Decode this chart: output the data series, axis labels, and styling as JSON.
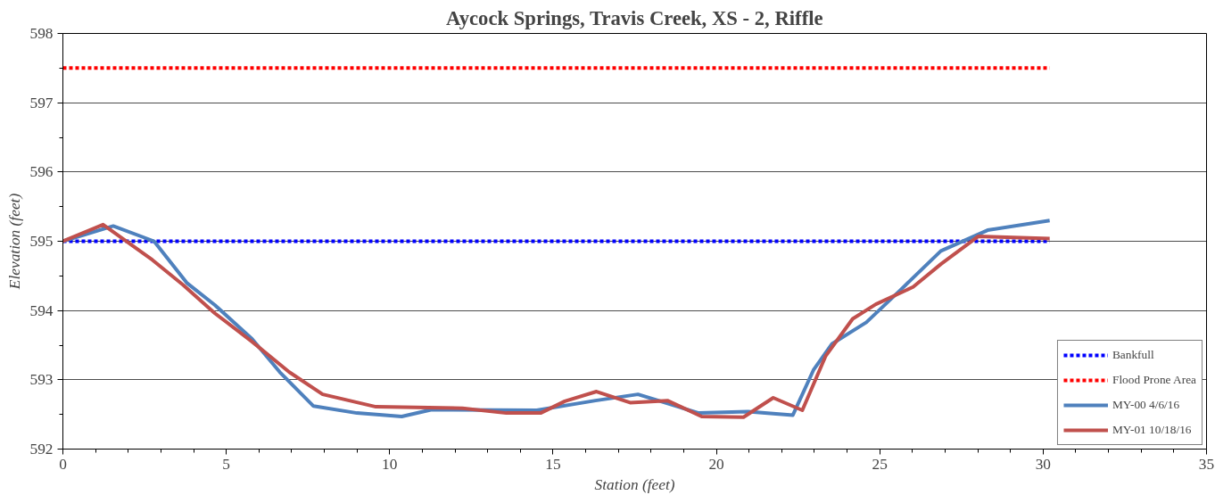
{
  "chart_data": {
    "type": "line",
    "title": "Aycock Springs, Travis Creek, XS - 2, Riffle",
    "xlabel": "Station (feet)",
    "ylabel": "Elevation (feet)",
    "xlim": [
      0,
      35
    ],
    "xticks": [
      0,
      5,
      10,
      15,
      20,
      25,
      30,
      35
    ],
    "ylim": [
      592,
      598
    ],
    "yticks": [
      592,
      593,
      594,
      595,
      596,
      597,
      598
    ],
    "grid": "y",
    "legend": "bottom right",
    "marker": "none",
    "series": [
      {
        "name": "Bankfull",
        "color": "#0000ff",
        "line_style": "dashed",
        "x": [
          0,
          30.2
        ],
        "values": [
          595.0,
          595.0
        ]
      },
      {
        "name": "Flood Prone Area",
        "color": "#ff0000",
        "line_style": "dashed",
        "x": [
          0,
          30.2
        ],
        "values": [
          597.5,
          597.5
        ]
      },
      {
        "name": "MY-00 4/6/16",
        "color": "#4f81bd",
        "line_style": "solid",
        "x": [
          0,
          1.54,
          2.79,
          3.79,
          4.65,
          5.79,
          6.64,
          7.67,
          9.0,
          10.37,
          11.29,
          14.5,
          16.3,
          17.6,
          19.46,
          20.97,
          22.34,
          22.97,
          23.54,
          24.59,
          25.62,
          26.87,
          28.3,
          30.2
        ],
        "values": [
          595.0,
          595.22,
          595.0,
          594.4,
          594.08,
          593.59,
          593.11,
          592.62,
          592.52,
          592.47,
          592.57,
          592.56,
          592.7,
          592.79,
          592.52,
          592.54,
          592.49,
          593.14,
          593.52,
          593.83,
          594.29,
          594.86,
          595.16,
          595.3
        ]
      },
      {
        "name": "MY-01 10/18/16",
        "color": "#c0504d",
        "line_style": "solid",
        "x": [
          0,
          1.23,
          2.74,
          3.68,
          4.65,
          5.79,
          6.93,
          7.95,
          9.58,
          12.23,
          13.57,
          14.62,
          15.36,
          16.33,
          17.36,
          18.5,
          19.55,
          20.83,
          21.74,
          22.63,
          23.34,
          24.17,
          24.88,
          26.02,
          26.87,
          28.01,
          30.2
        ],
        "values": [
          595.0,
          595.24,
          594.73,
          594.37,
          593.96,
          593.55,
          593.11,
          592.79,
          592.61,
          592.59,
          592.52,
          592.52,
          592.69,
          592.83,
          592.67,
          592.7,
          592.47,
          592.46,
          592.74,
          592.56,
          593.34,
          593.88,
          594.09,
          594.34,
          594.67,
          595.07,
          595.04
        ]
      }
    ]
  }
}
